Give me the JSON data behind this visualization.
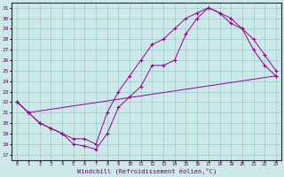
{
  "xlabel": "Windchill (Refroidissement éolien,°C)",
  "xlim": [
    -0.5,
    23.5
  ],
  "ylim": [
    16.5,
    31.5
  ],
  "yticks": [
    17,
    18,
    19,
    20,
    21,
    22,
    23,
    24,
    25,
    26,
    27,
    28,
    29,
    30,
    31
  ],
  "xticks": [
    0,
    1,
    2,
    3,
    4,
    5,
    6,
    7,
    8,
    9,
    10,
    11,
    12,
    13,
    14,
    15,
    16,
    17,
    18,
    19,
    20,
    21,
    22,
    23
  ],
  "bg_color": "#cce8e8",
  "grid_color": "#99cccc",
  "line_color": "#990099",
  "curve1_x": [
    0,
    1,
    2,
    3,
    4,
    5,
    6,
    7,
    8,
    9,
    10,
    11,
    12,
    13,
    14,
    15,
    16,
    17,
    18,
    19,
    20,
    21,
    22,
    23
  ],
  "curve1_y": [
    22,
    21,
    20,
    19.5,
    19,
    18,
    17.8,
    17.5,
    19,
    21.5,
    22.5,
    23.5,
    25.5,
    25.5,
    26,
    28.5,
    30,
    31,
    30.5,
    29.5,
    29,
    27,
    25.5,
    24.5
  ],
  "curve2_x": [
    0,
    1,
    2,
    3,
    4,
    5,
    6,
    7,
    8,
    9,
    10,
    11,
    12,
    13,
    14,
    15,
    16,
    17,
    18,
    19,
    20,
    21,
    22,
    23
  ],
  "curve2_y": [
    22,
    21,
    20,
    19.5,
    19,
    18.5,
    18.5,
    18,
    21,
    23,
    24.5,
    26,
    27.5,
    28,
    29,
    30,
    30.5,
    31,
    30.5,
    30,
    29,
    28,
    26.5,
    25
  ],
  "curve3_x": [
    0,
    1,
    23
  ],
  "curve3_y": [
    22,
    21,
    24.5
  ]
}
